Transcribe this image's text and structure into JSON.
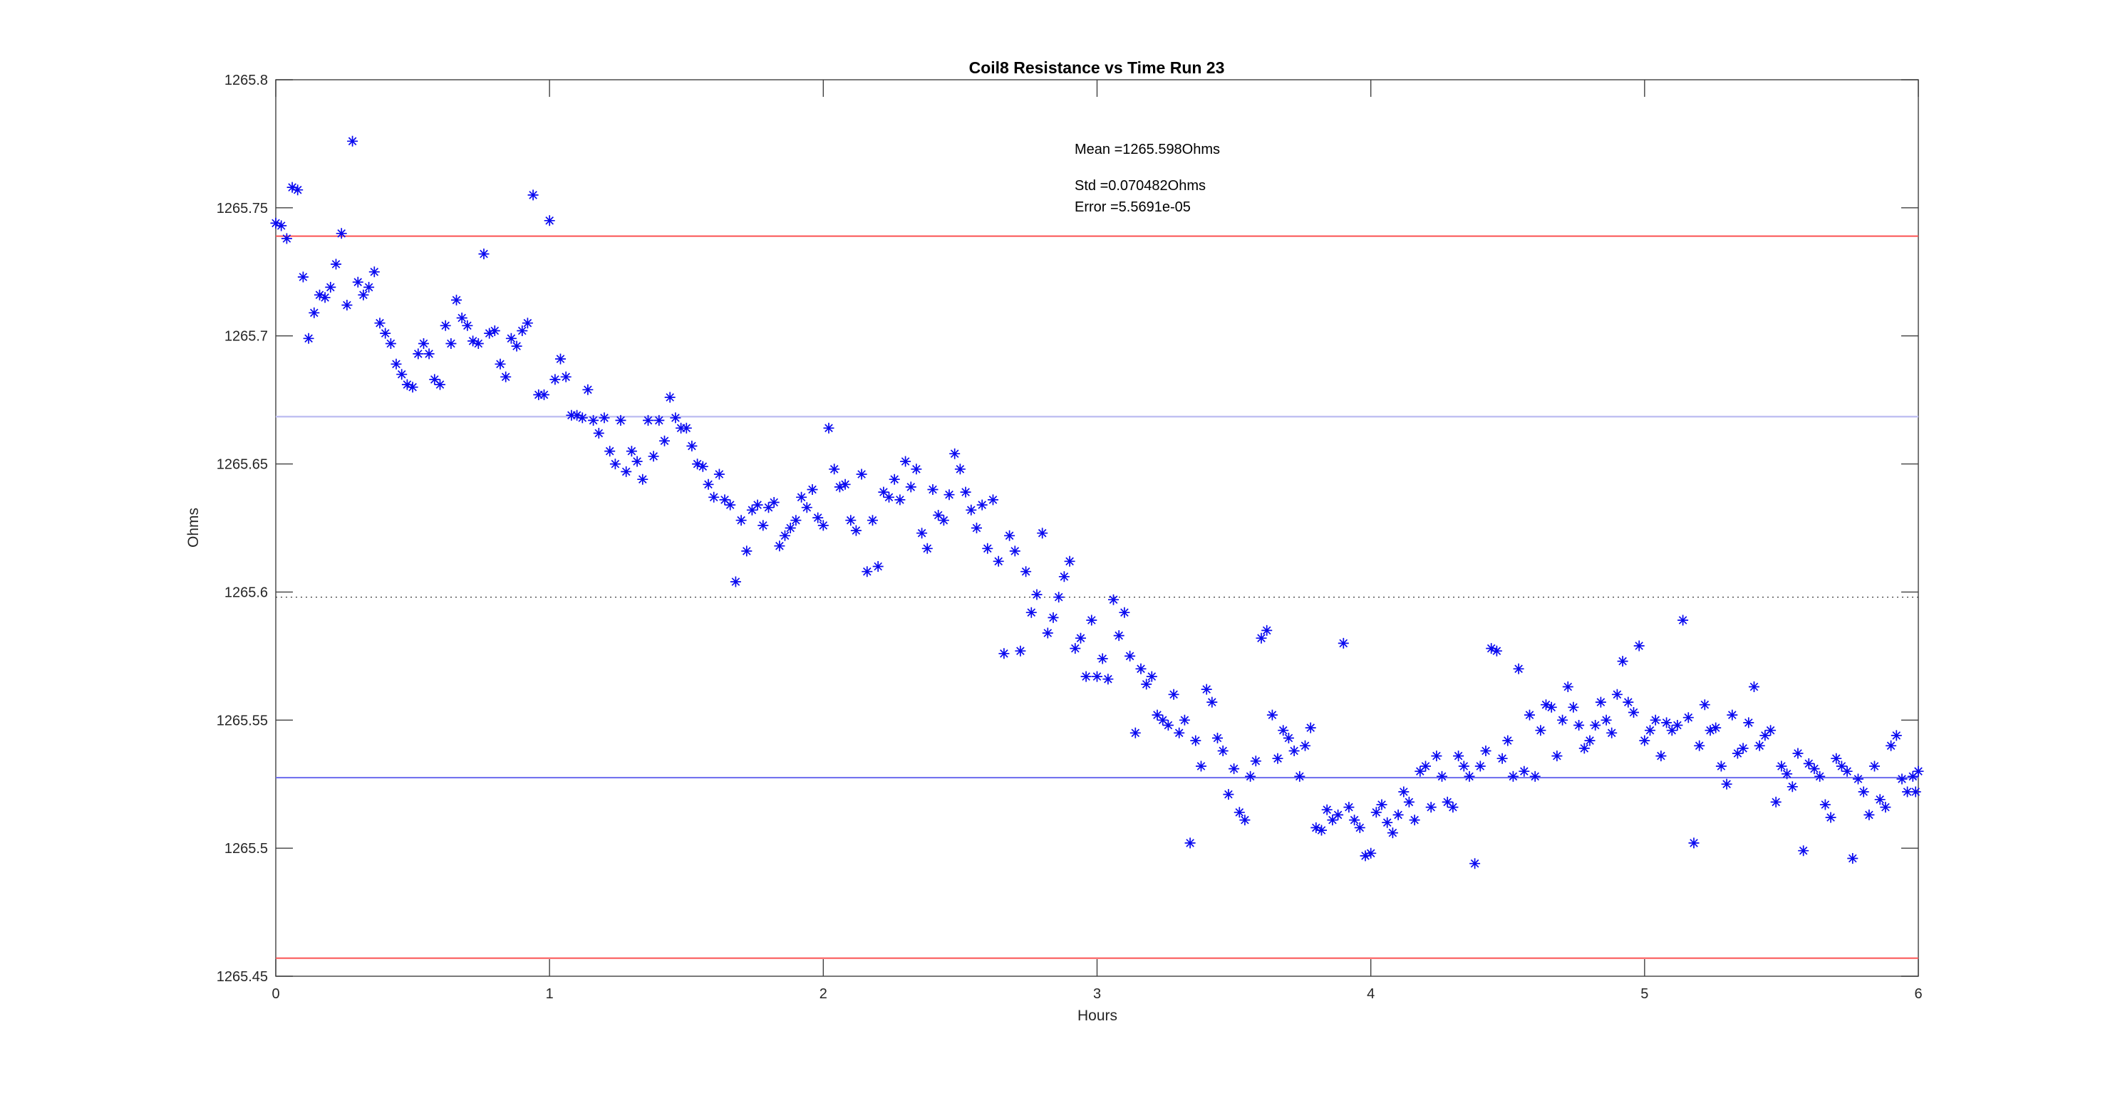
{
  "figure": {
    "background": "#ffffff"
  },
  "annotations": {
    "mean": "Mean =1265.598Ohms",
    "std": "Std =0.070482Ohms",
    "error": "Error =5.5691e-05"
  },
  "chart_data": {
    "type": "scatter",
    "title": "Coil8 Resistance vs Time Run 23",
    "xlabel": "Hours",
    "ylabel": "Ohms",
    "xlim": [
      0,
      6
    ],
    "ylim": [
      1265.45,
      1265.8
    ],
    "grid": false,
    "legend": "none",
    "marker": "asterisk",
    "marker_color": "#0b0bf0",
    "axis_color": "#404040",
    "tick_label_color": "#262626",
    "stats": {
      "mean_ohms": 1265.598,
      "std_ohms": 0.070482,
      "error": 5.5691e-05
    },
    "x_ticks": [
      {
        "v": 0,
        "label": "0"
      },
      {
        "v": 1,
        "label": "1"
      },
      {
        "v": 2,
        "label": "2"
      },
      {
        "v": 3,
        "label": "3"
      },
      {
        "v": 4,
        "label": "4"
      },
      {
        "v": 5,
        "label": "5"
      },
      {
        "v": 6,
        "label": "6"
      }
    ],
    "y_ticks": [
      {
        "v": 1265.45,
        "label": "1265.45"
      },
      {
        "v": 1265.5,
        "label": "1265.5"
      },
      {
        "v": 1265.55,
        "label": "1265.55"
      },
      {
        "v": 1265.6,
        "label": "1265.6"
      },
      {
        "v": 1265.65,
        "label": "1265.65"
      },
      {
        "v": 1265.7,
        "label": "1265.7"
      },
      {
        "v": 1265.75,
        "label": "1265.75"
      },
      {
        "v": 1265.8,
        "label": "1265.8"
      }
    ],
    "reference_lines": [
      {
        "name": "mean-plus-2std",
        "value": 1265.73896,
        "color": "#fb5252",
        "width": 2,
        "dash": "none"
      },
      {
        "name": "mean-plus-std",
        "value": 1265.66848,
        "color": "#c0c0f2",
        "width": 2.5,
        "dash": "none"
      },
      {
        "name": "mean",
        "value": 1265.598,
        "color": "#3a3a3a",
        "width": 1.2,
        "dash": "2 5"
      },
      {
        "name": "mean-minus-std",
        "value": 1265.52752,
        "color": "#6a6aee",
        "width": 2,
        "dash": "none"
      },
      {
        "name": "mean-minus-2std",
        "value": 1265.45704,
        "color": "#fb5252",
        "width": 2,
        "dash": "none"
      }
    ],
    "points": [
      [
        0,
        1265.744
      ],
      [
        0.02,
        1265.743
      ],
      [
        0.04,
        1265.738
      ],
      [
        0.06,
        1265.758
      ],
      [
        0.08,
        1265.757
      ],
      [
        0.1,
        1265.723
      ],
      [
        0.12,
        1265.699
      ],
      [
        0.14,
        1265.709
      ],
      [
        0.16,
        1265.716
      ],
      [
        0.18,
        1265.715
      ],
      [
        0.2,
        1265.719
      ],
      [
        0.22,
        1265.728
      ],
      [
        0.24,
        1265.74
      ],
      [
        0.26,
        1265.712
      ],
      [
        0.28,
        1265.776
      ],
      [
        0.3,
        1265.721
      ],
      [
        0.32,
        1265.716
      ],
      [
        0.34,
        1265.719
      ],
      [
        0.36,
        1265.725
      ],
      [
        0.38,
        1265.705
      ],
      [
        0.4,
        1265.701
      ],
      [
        0.42,
        1265.697
      ],
      [
        0.44,
        1265.689
      ],
      [
        0.46,
        1265.685
      ],
      [
        0.48,
        1265.681
      ],
      [
        0.5,
        1265.68
      ],
      [
        0.52,
        1265.693
      ],
      [
        0.54,
        1265.697
      ],
      [
        0.56,
        1265.693
      ],
      [
        0.58,
        1265.683
      ],
      [
        0.6,
        1265.681
      ],
      [
        0.62,
        1265.704
      ],
      [
        0.64,
        1265.697
      ],
      [
        0.66,
        1265.714
      ],
      [
        0.68,
        1265.707
      ],
      [
        0.7,
        1265.704
      ],
      [
        0.72,
        1265.698
      ],
      [
        0.74,
        1265.697
      ],
      [
        0.76,
        1265.732
      ],
      [
        0.78,
        1265.701
      ],
      [
        0.8,
        1265.702
      ],
      [
        0.82,
        1265.689
      ],
      [
        0.84,
        1265.684
      ],
      [
        0.86,
        1265.699
      ],
      [
        0.88,
        1265.696
      ],
      [
        0.9,
        1265.702
      ],
      [
        0.92,
        1265.705
      ],
      [
        0.94,
        1265.755
      ],
      [
        0.96,
        1265.677
      ],
      [
        0.98,
        1265.677
      ],
      [
        1,
        1265.745
      ],
      [
        1.02,
        1265.683
      ],
      [
        1.04,
        1265.691
      ],
      [
        1.06,
        1265.684
      ],
      [
        1.08,
        1265.669
      ],
      [
        1.1,
        1265.669
      ],
      [
        1.12,
        1265.668
      ],
      [
        1.14,
        1265.679
      ],
      [
        1.16,
        1265.667
      ],
      [
        1.18,
        1265.662
      ],
      [
        1.2,
        1265.668
      ],
      [
        1.22,
        1265.655
      ],
      [
        1.24,
        1265.65
      ],
      [
        1.26,
        1265.667
      ],
      [
        1.28,
        1265.647
      ],
      [
        1.3,
        1265.655
      ],
      [
        1.32,
        1265.651
      ],
      [
        1.34,
        1265.644
      ],
      [
        1.36,
        1265.667
      ],
      [
        1.38,
        1265.653
      ],
      [
        1.4,
        1265.667
      ],
      [
        1.42,
        1265.659
      ],
      [
        1.44,
        1265.676
      ],
      [
        1.46,
        1265.668
      ],
      [
        1.48,
        1265.664
      ],
      [
        1.5,
        1265.664
      ],
      [
        1.52,
        1265.657
      ],
      [
        1.54,
        1265.65
      ],
      [
        1.56,
        1265.649
      ],
      [
        1.58,
        1265.642
      ],
      [
        1.6,
        1265.637
      ],
      [
        1.62,
        1265.646
      ],
      [
        1.64,
        1265.636
      ],
      [
        1.66,
        1265.634
      ],
      [
        1.68,
        1265.604
      ],
      [
        1.7,
        1265.628
      ],
      [
        1.72,
        1265.616
      ],
      [
        1.74,
        1265.632
      ],
      [
        1.76,
        1265.634
      ],
      [
        1.78,
        1265.626
      ],
      [
        1.8,
        1265.633
      ],
      [
        1.82,
        1265.635
      ],
      [
        1.84,
        1265.618
      ],
      [
        1.86,
        1265.622
      ],
      [
        1.88,
        1265.625
      ],
      [
        1.9,
        1265.628
      ],
      [
        1.92,
        1265.637
      ],
      [
        1.94,
        1265.633
      ],
      [
        1.96,
        1265.64
      ],
      [
        1.98,
        1265.629
      ],
      [
        2,
        1265.626
      ],
      [
        2.02,
        1265.664
      ],
      [
        2.04,
        1265.648
      ],
      [
        2.06,
        1265.641
      ],
      [
        2.08,
        1265.642
      ],
      [
        2.1,
        1265.628
      ],
      [
        2.12,
        1265.624
      ],
      [
        2.14,
        1265.646
      ],
      [
        2.16,
        1265.608
      ],
      [
        2.18,
        1265.628
      ],
      [
        2.2,
        1265.61
      ],
      [
        2.22,
        1265.639
      ],
      [
        2.24,
        1265.637
      ],
      [
        2.26,
        1265.644
      ],
      [
        2.28,
        1265.636
      ],
      [
        2.3,
        1265.651
      ],
      [
        2.32,
        1265.641
      ],
      [
        2.34,
        1265.648
      ],
      [
        2.36,
        1265.623
      ],
      [
        2.38,
        1265.617
      ],
      [
        2.4,
        1265.64
      ],
      [
        2.42,
        1265.63
      ],
      [
        2.44,
        1265.628
      ],
      [
        2.46,
        1265.638
      ],
      [
        2.48,
        1265.654
      ],
      [
        2.5,
        1265.648
      ],
      [
        2.52,
        1265.639
      ],
      [
        2.54,
        1265.632
      ],
      [
        2.56,
        1265.625
      ],
      [
        2.58,
        1265.634
      ],
      [
        2.6,
        1265.617
      ],
      [
        2.62,
        1265.636
      ],
      [
        2.64,
        1265.612
      ],
      [
        2.66,
        1265.576
      ],
      [
        2.68,
        1265.622
      ],
      [
        2.7,
        1265.616
      ],
      [
        2.72,
        1265.577
      ],
      [
        2.74,
        1265.608
      ],
      [
        2.76,
        1265.592
      ],
      [
        2.78,
        1265.599
      ],
      [
        2.8,
        1265.623
      ],
      [
        2.82,
        1265.584
      ],
      [
        2.84,
        1265.59
      ],
      [
        2.86,
        1265.598
      ],
      [
        2.88,
        1265.606
      ],
      [
        2.9,
        1265.612
      ],
      [
        2.92,
        1265.578
      ],
      [
        2.94,
        1265.582
      ],
      [
        2.96,
        1265.567
      ],
      [
        2.98,
        1265.589
      ],
      [
        3,
        1265.567
      ],
      [
        3.02,
        1265.574
      ],
      [
        3.04,
        1265.566
      ],
      [
        3.06,
        1265.597
      ],
      [
        3.08,
        1265.583
      ],
      [
        3.1,
        1265.592
      ],
      [
        3.12,
        1265.575
      ],
      [
        3.14,
        1265.545
      ],
      [
        3.16,
        1265.57
      ],
      [
        3.18,
        1265.564
      ],
      [
        3.2,
        1265.567
      ],
      [
        3.22,
        1265.552
      ],
      [
        3.24,
        1265.55
      ],
      [
        3.26,
        1265.548
      ],
      [
        3.28,
        1265.56
      ],
      [
        3.3,
        1265.545
      ],
      [
        3.32,
        1265.55
      ],
      [
        3.34,
        1265.502
      ],
      [
        3.36,
        1265.542
      ],
      [
        3.38,
        1265.532
      ],
      [
        3.4,
        1265.562
      ],
      [
        3.42,
        1265.557
      ],
      [
        3.44,
        1265.543
      ],
      [
        3.46,
        1265.538
      ],
      [
        3.48,
        1265.521
      ],
      [
        3.5,
        1265.531
      ],
      [
        3.52,
        1265.514
      ],
      [
        3.54,
        1265.511
      ],
      [
        3.56,
        1265.528
      ],
      [
        3.58,
        1265.534
      ],
      [
        3.6,
        1265.582
      ],
      [
        3.62,
        1265.585
      ],
      [
        3.64,
        1265.552
      ],
      [
        3.66,
        1265.535
      ],
      [
        3.68,
        1265.546
      ],
      [
        3.7,
        1265.543
      ],
      [
        3.72,
        1265.538
      ],
      [
        3.74,
        1265.528
      ],
      [
        3.76,
        1265.54
      ],
      [
        3.78,
        1265.547
      ],
      [
        3.8,
        1265.508
      ],
      [
        3.82,
        1265.507
      ],
      [
        3.84,
        1265.515
      ],
      [
        3.86,
        1265.511
      ],
      [
        3.88,
        1265.513
      ],
      [
        3.9,
        1265.58
      ],
      [
        3.92,
        1265.516
      ],
      [
        3.94,
        1265.511
      ],
      [
        3.96,
        1265.508
      ],
      [
        3.98,
        1265.497
      ],
      [
        4,
        1265.498
      ],
      [
        4.02,
        1265.514
      ],
      [
        4.04,
        1265.517
      ],
      [
        4.06,
        1265.51
      ],
      [
        4.08,
        1265.506
      ],
      [
        4.1,
        1265.513
      ],
      [
        4.12,
        1265.522
      ],
      [
        4.14,
        1265.518
      ],
      [
        4.16,
        1265.511
      ],
      [
        4.18,
        1265.53
      ],
      [
        4.2,
        1265.532
      ],
      [
        4.22,
        1265.516
      ],
      [
        4.24,
        1265.536
      ],
      [
        4.26,
        1265.528
      ],
      [
        4.28,
        1265.518
      ],
      [
        4.3,
        1265.516
      ],
      [
        4.32,
        1265.536
      ],
      [
        4.34,
        1265.532
      ],
      [
        4.36,
        1265.528
      ],
      [
        4.38,
        1265.494
      ],
      [
        4.4,
        1265.532
      ],
      [
        4.42,
        1265.538
      ],
      [
        4.44,
        1265.578
      ],
      [
        4.46,
        1265.577
      ],
      [
        4.48,
        1265.535
      ],
      [
        4.5,
        1265.542
      ],
      [
        4.52,
        1265.528
      ],
      [
        4.54,
        1265.57
      ],
      [
        4.56,
        1265.53
      ],
      [
        4.58,
        1265.552
      ],
      [
        4.6,
        1265.528
      ],
      [
        4.62,
        1265.546
      ],
      [
        4.64,
        1265.556
      ],
      [
        4.66,
        1265.555
      ],
      [
        4.68,
        1265.536
      ],
      [
        4.7,
        1265.55
      ],
      [
        4.72,
        1265.563
      ],
      [
        4.74,
        1265.555
      ],
      [
        4.76,
        1265.548
      ],
      [
        4.78,
        1265.539
      ],
      [
        4.8,
        1265.542
      ],
      [
        4.82,
        1265.548
      ],
      [
        4.84,
        1265.557
      ],
      [
        4.86,
        1265.55
      ],
      [
        4.88,
        1265.545
      ],
      [
        4.9,
        1265.56
      ],
      [
        4.92,
        1265.573
      ],
      [
        4.94,
        1265.557
      ],
      [
        4.96,
        1265.553
      ],
      [
        4.98,
        1265.579
      ],
      [
        5,
        1265.542
      ],
      [
        5.02,
        1265.546
      ],
      [
        5.04,
        1265.55
      ],
      [
        5.06,
        1265.536
      ],
      [
        5.08,
        1265.549
      ],
      [
        5.1,
        1265.546
      ],
      [
        5.12,
        1265.548
      ],
      [
        5.14,
        1265.589
      ],
      [
        5.16,
        1265.551
      ],
      [
        5.18,
        1265.502
      ],
      [
        5.2,
        1265.54
      ],
      [
        5.22,
        1265.556
      ],
      [
        5.24,
        1265.546
      ],
      [
        5.26,
        1265.547
      ],
      [
        5.28,
        1265.532
      ],
      [
        5.3,
        1265.525
      ],
      [
        5.32,
        1265.552
      ],
      [
        5.34,
        1265.537
      ],
      [
        5.36,
        1265.539
      ],
      [
        5.38,
        1265.549
      ],
      [
        5.4,
        1265.563
      ],
      [
        5.42,
        1265.54
      ],
      [
        5.44,
        1265.544
      ],
      [
        5.46,
        1265.546
      ],
      [
        5.48,
        1265.518
      ],
      [
        5.5,
        1265.532
      ],
      [
        5.52,
        1265.529
      ],
      [
        5.54,
        1265.524
      ],
      [
        5.56,
        1265.537
      ],
      [
        5.58,
        1265.499
      ],
      [
        5.6,
        1265.533
      ],
      [
        5.62,
        1265.531
      ],
      [
        5.64,
        1265.528
      ],
      [
        5.66,
        1265.517
      ],
      [
        5.68,
        1265.512
      ],
      [
        5.7,
        1265.535
      ],
      [
        5.72,
        1265.532
      ],
      [
        5.74,
        1265.53
      ],
      [
        5.76,
        1265.496
      ],
      [
        5.78,
        1265.527
      ],
      [
        5.8,
        1265.522
      ],
      [
        5.82,
        1265.513
      ],
      [
        5.84,
        1265.532
      ],
      [
        5.86,
        1265.519
      ],
      [
        5.88,
        1265.516
      ],
      [
        5.9,
        1265.54
      ],
      [
        5.92,
        1265.544
      ],
      [
        5.94,
        1265.527
      ],
      [
        5.96,
        1265.522
      ],
      [
        5.98,
        1265.528
      ],
      [
        5.99,
        1265.522
      ],
      [
        6,
        1265.53
      ]
    ]
  }
}
